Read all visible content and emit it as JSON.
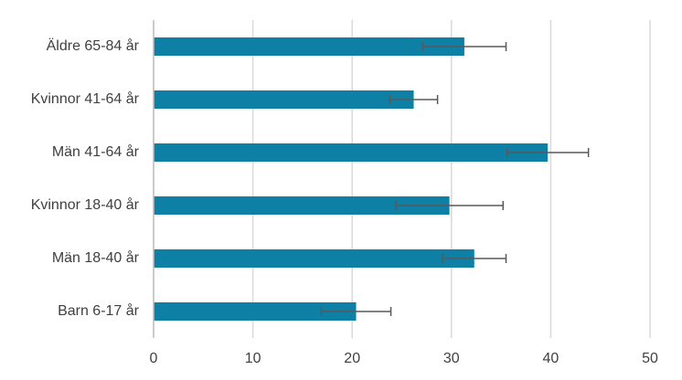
{
  "chart_data": {
    "type": "hbar",
    "categories": [
      "Äldre 65-84 år",
      "Kvinnor 41-64 år",
      "Män 41-64 år",
      "Kvinnor 18-40 år",
      "Män 18-40 år",
      "Barn 6-17 år"
    ],
    "values": [
      31.3,
      26.2,
      39.7,
      29.8,
      32.3,
      20.4
    ],
    "errors": [
      4.2,
      2.4,
      4.1,
      5.4,
      3.2,
      3.5
    ],
    "color": "#0e7fa5",
    "error_color": "#595959",
    "xlim": [
      0,
      50
    ],
    "xticks": [
      0,
      10,
      20,
      30,
      40,
      50
    ],
    "grid": true
  }
}
